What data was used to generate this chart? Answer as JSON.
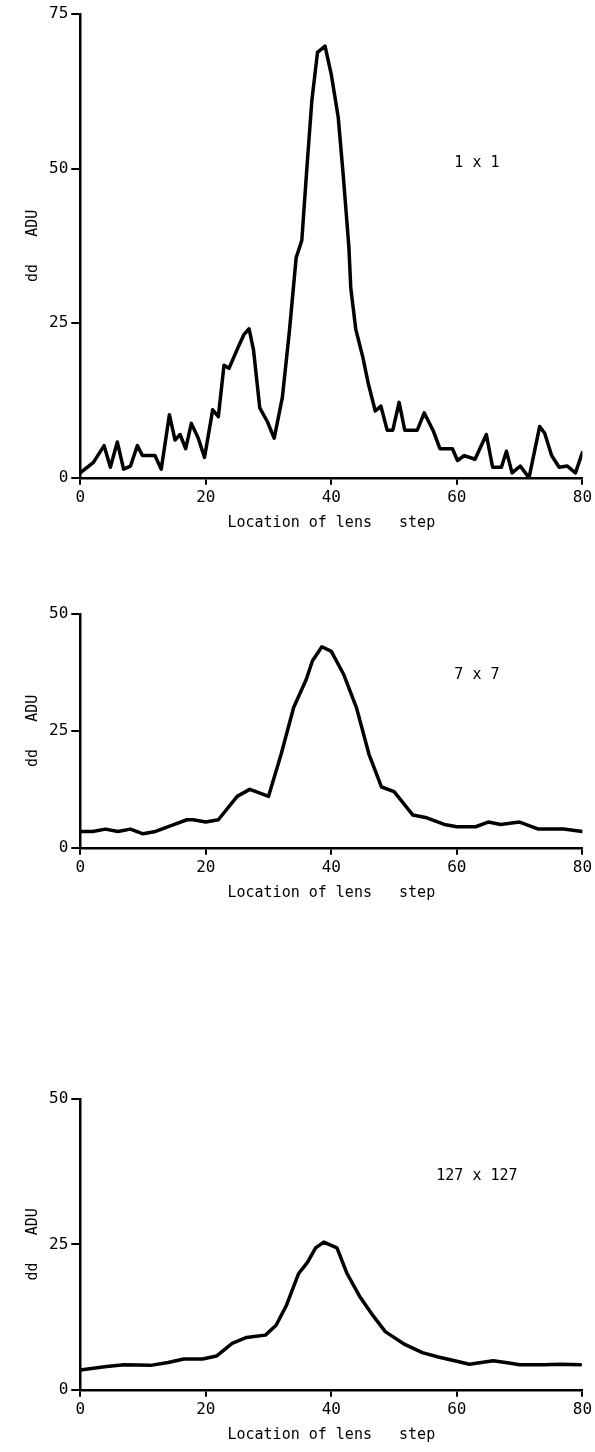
{
  "chart_data": [
    {
      "type": "line",
      "xlabel": "Location of lens   step",
      "ylabel": "dd   ADU",
      "annotations": [
        "1 x 1"
      ],
      "xlim": [
        0,
        80
      ],
      "xticks": [
        0,
        20,
        40,
        60,
        80
      ],
      "ylim": [
        0,
        75
      ],
      "yticks": [
        0,
        25,
        50,
        75
      ],
      "grid": false,
      "legend": false,
      "marker": "none",
      "line_style": "solid",
      "series": [
        {
          "color": "#000000",
          "x": [
            0,
            2.1,
            3.8,
            4.8,
            5.9,
            6.9,
            8,
            9.1,
            9.9,
            11.9,
            12.9,
            14.2,
            15.1,
            15.9,
            16.8,
            17.7,
            18.8,
            19.8,
            21.1,
            22,
            22.9,
            23.7,
            25.1,
            26.1,
            26.9,
            27.6,
            28.6,
            29.8,
            30.9,
            32.2,
            33.3,
            34.4,
            35.3,
            36.1,
            36.9,
            37.8,
            39,
            40,
            41.1,
            41.9,
            42.8,
            43.1,
            43.9,
            45,
            45.9,
            47,
            47.9,
            48.9,
            49.8,
            50.8,
            51.7,
            53.7,
            54.8,
            56.2,
            57.3,
            59.3,
            60.1,
            61.2,
            62.9,
            64.7,
            65.7,
            67.1,
            67.9,
            68.8,
            70.1,
            71.5,
            73.2,
            74,
            75.1,
            76.3,
            77.6,
            78.9,
            80
          ],
          "values": [
            0.8,
            2.5,
            5.2,
            1.7,
            5.8,
            1.4,
            1.9,
            5.2,
            3.6,
            3.6,
            1.4,
            10.2,
            6.1,
            7,
            4.7,
            8.8,
            6.4,
            3.3,
            11,
            9.9,
            18.2,
            17.7,
            21,
            23.2,
            24.1,
            20.7,
            11.3,
            9.1,
            6.4,
            13,
            23.5,
            35.6,
            38.4,
            50,
            61,
            68.8,
            69.8,
            65.2,
            58.3,
            48.9,
            37.3,
            30.7,
            24,
            19.6,
            15.2,
            10.8,
            11.6,
            7.7,
            7.7,
            12.2,
            7.7,
            7.7,
            10.5,
            7.7,
            4.7,
            4.7,
            2.8,
            3.6,
            3,
            7,
            1.7,
            1.7,
            4.3,
            0.8,
            1.9,
            0,
            8.3,
            7.2,
            3.6,
            1.7,
            1.9,
            0.8,
            4.1
          ]
        }
      ]
    },
    {
      "type": "line",
      "xlabel": "Location of lens   step",
      "ylabel": "dd   ADU",
      "annotations": [
        "7 x 7"
      ],
      "xlim": [
        0,
        80
      ],
      "xticks": [
        0,
        20,
        40,
        60,
        80
      ],
      "ylim": [
        0,
        50
      ],
      "yticks": [
        0,
        25,
        50
      ],
      "grid": false,
      "legend": false,
      "marker": "none",
      "line_style": "solid",
      "series": [
        {
          "color": "#000000",
          "x": [
            0,
            2,
            4,
            6,
            8,
            10,
            12,
            15,
            17,
            18,
            20,
            22,
            25,
            27,
            30,
            32,
            34,
            36,
            37,
            38.5,
            40,
            42,
            44,
            46,
            48,
            50,
            53,
            55,
            58,
            60,
            63,
            65,
            67,
            70,
            73,
            77,
            80
          ],
          "values": [
            3.5,
            3.5,
            4,
            3.5,
            4,
            3,
            3.5,
            5,
            6,
            6,
            5.5,
            6,
            11,
            12.5,
            11,
            20,
            30,
            36,
            40,
            43,
            42,
            37,
            30,
            20,
            13,
            12,
            7,
            6.5,
            5,
            4.5,
            4.5,
            5.5,
            5,
            5.5,
            4,
            4,
            3.5
          ]
        }
      ]
    },
    {
      "type": "line",
      "xlabel": "Location of lens   step",
      "ylabel": "dd   ADU",
      "annotations": [
        "127 x 127"
      ],
      "xlim": [
        0,
        80
      ],
      "xticks": [
        0,
        20,
        40,
        60,
        80
      ],
      "ylim": [
        0,
        50
      ],
      "yticks": [
        0,
        25,
        50
      ],
      "grid": false,
      "legend": false,
      "marker": "none",
      "line_style": "solid",
      "series": [
        {
          "color": "#000000",
          "x": [
            0,
            4.2,
            7,
            11.2,
            14,
            16.5,
            19.5,
            21.7,
            24.2,
            26.5,
            29.5,
            31.2,
            32.8,
            34.8,
            36.2,
            37.5,
            38.8,
            40.9,
            42.5,
            44.5,
            46.4,
            48.6,
            51.7,
            54.5,
            57.2,
            60,
            62,
            63.9,
            65.8,
            68.3,
            70,
            73.9,
            76.6,
            79.7
          ],
          "values": [
            3.4,
            4,
            4.3,
            4.2,
            4.7,
            5.3,
            5.3,
            5.8,
            8,
            9,
            9.4,
            11.1,
            14.4,
            20,
            21.9,
            24.4,
            25.4,
            24.4,
            20,
            16.1,
            13.1,
            10,
            7.8,
            6.4,
            5.6,
            4.9,
            4.4,
            4.7,
            5,
            4.6,
            4.3,
            4.3,
            4.4,
            4.3
          ]
        }
      ]
    }
  ]
}
